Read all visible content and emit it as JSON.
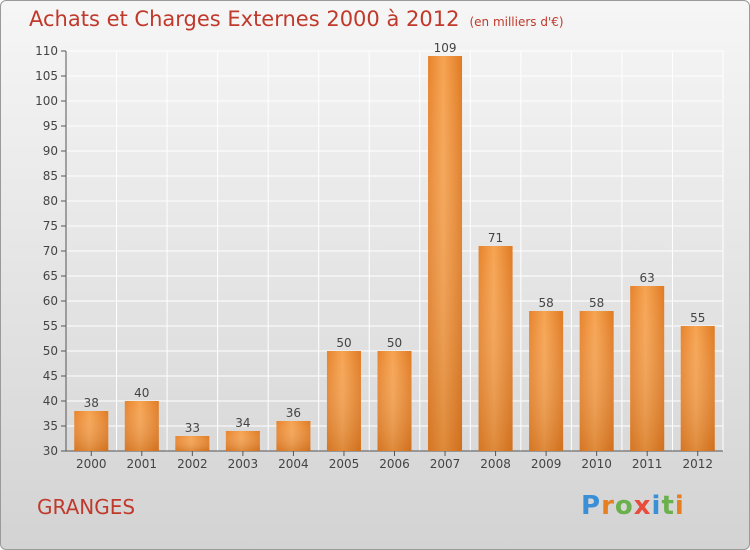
{
  "title": "Achats et Charges Externes 2000 à 2012",
  "unit": "(en milliers d'€)",
  "commune": "GRANGES",
  "logo": {
    "text": "Proxiti",
    "letters": [
      {
        "c": "P",
        "color": "#3a8fd6"
      },
      {
        "c": "r",
        "color": "#e67e22"
      },
      {
        "c": "o",
        "color": "#6ab04c"
      },
      {
        "c": "x",
        "color": "#e74c3c"
      },
      {
        "c": "i",
        "color": "#3a8fd6"
      },
      {
        "c": "t",
        "color": "#6ab04c"
      },
      {
        "c": "i",
        "color": "#e67e22"
      }
    ]
  },
  "chart_data": {
    "type": "bar",
    "title": "Achats et Charges Externes 2000 à 2012",
    "subtitle": "(en milliers d'€)",
    "categories": [
      "2000",
      "2001",
      "2002",
      "2003",
      "2004",
      "2005",
      "2006",
      "2007",
      "2008",
      "2009",
      "2010",
      "2011",
      "2012"
    ],
    "values": [
      38,
      40,
      33,
      34,
      36,
      50,
      50,
      109,
      71,
      58,
      58,
      63,
      55
    ],
    "ylim": [
      30,
      110
    ],
    "yticks": [
      30,
      35,
      40,
      45,
      50,
      55,
      60,
      65,
      70,
      75,
      80,
      85,
      90,
      95,
      100,
      105,
      110
    ],
    "grid": true,
    "bar_color": "#f39c42",
    "bar_color_dark": "#d8731a"
  }
}
